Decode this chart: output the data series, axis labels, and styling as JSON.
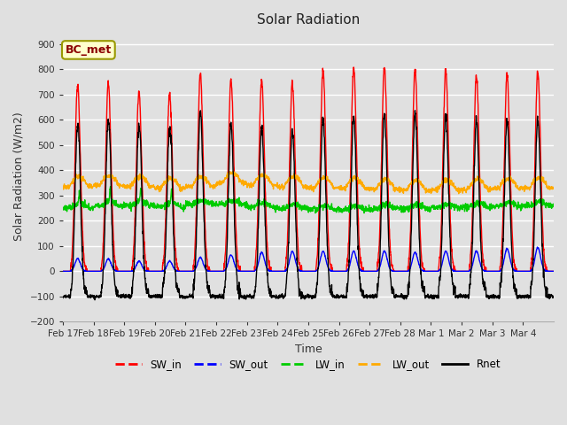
{
  "title": "Solar Radiation",
  "xlabel": "Time",
  "ylabel": "Solar Radiation (W/m2)",
  "ylim": [
    -200,
    950
  ],
  "yticks": [
    -200,
    -100,
    0,
    100,
    200,
    300,
    400,
    500,
    600,
    700,
    800,
    900
  ],
  "background_color": "#e0e0e0",
  "plot_bg_color": "#e0e0e0",
  "grid_color": "#ffffff",
  "annotation_text": "BC_met",
  "annotation_bg": "#ffffcc",
  "annotation_border": "#999900",
  "series_colors": {
    "SW_in": "#ff0000",
    "SW_out": "#0000ff",
    "LW_in": "#00cc00",
    "LW_out": "#ffaa00",
    "Rnet": "#000000"
  },
  "n_days": 16,
  "start_day": 17,
  "tick_labels": [
    "Feb 17",
    "Feb 18",
    "Feb 19",
    "Feb 20",
    "Feb 21",
    "Feb 22",
    "Feb 23",
    "Feb 24",
    "Feb 25",
    "Feb 26",
    "Feb 27",
    "Feb 28",
    "Mar 1",
    "Mar 2",
    "Mar 3",
    "Mar 4"
  ],
  "sw_in_peaks": [
    740,
    745,
    710,
    705,
    780,
    760,
    755,
    750,
    795,
    810,
    810,
    795,
    800,
    775,
    780,
    790
  ],
  "sw_out_peaks": [
    50,
    50,
    40,
    40,
    55,
    65,
    75,
    80,
    80,
    80,
    80,
    75,
    80,
    80,
    90,
    95
  ],
  "lw_in_base": [
    250,
    260,
    260,
    255,
    265,
    265,
    255,
    250,
    245,
    245,
    248,
    248,
    252,
    255,
    258,
    260
  ],
  "lw_out_base": [
    335,
    340,
    335,
    328,
    335,
    350,
    340,
    335,
    330,
    328,
    325,
    320,
    322,
    325,
    328,
    330
  ],
  "rnet_night": -100
}
